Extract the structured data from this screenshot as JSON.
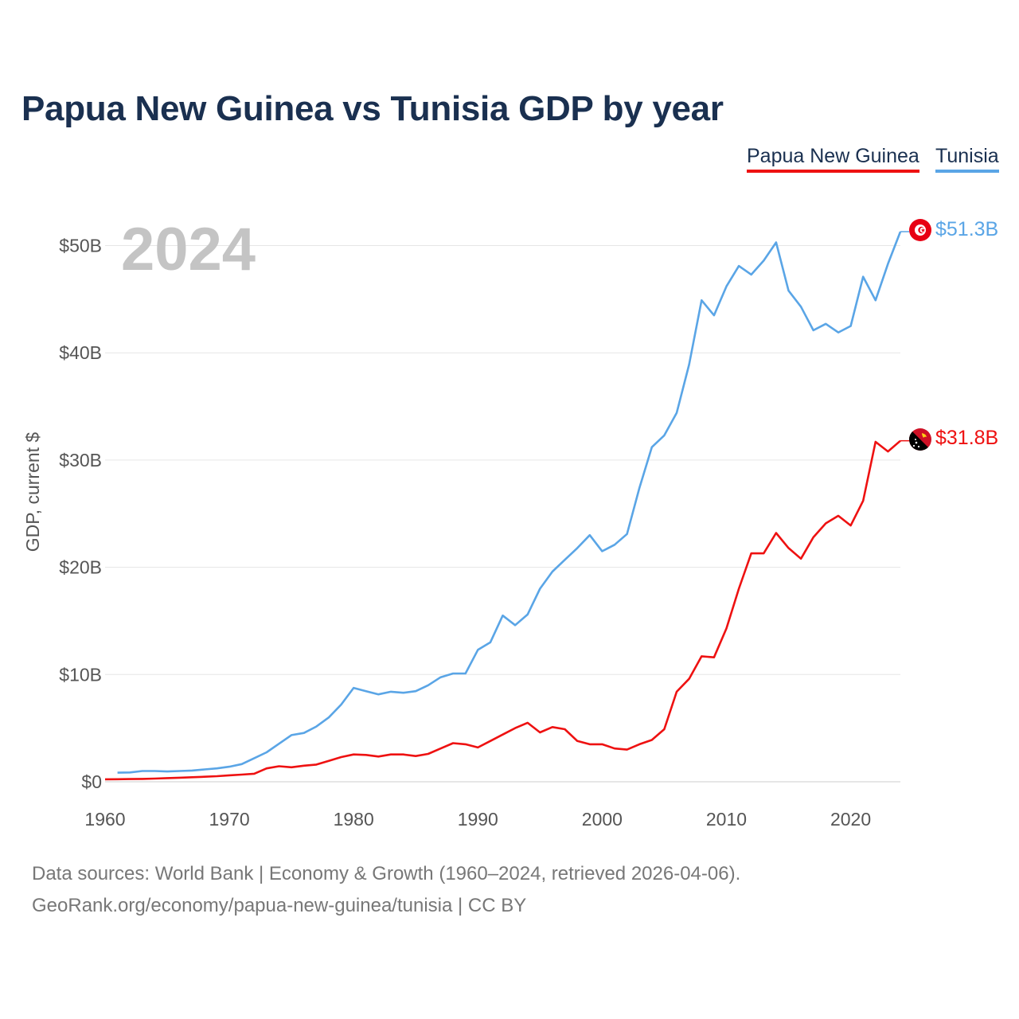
{
  "colors": {
    "png": "#ee1111",
    "tunisia": "#5aa5e6",
    "title": "#1a3050",
    "grid": "#e6e6e6",
    "axis_text": "#555555",
    "year_text": "#c4c4c4"
  },
  "legend": {
    "png": "Papua New Guinea",
    "tunisia": "Tunisia"
  },
  "year_label": "2024",
  "end_labels": {
    "png": "$31.8B",
    "tunisia": "$51.3B"
  },
  "icons": {
    "png": "papua-new-guinea-flag-icon",
    "tunisia": "tunisia-flag-icon"
  },
  "footer": {
    "line1": "Data sources: World Bank | Economy & Growth (1960–2024, retrieved 2026-04-06).",
    "line2": "GeoRank.org/economy/papua-new-guinea/tunisia | CC BY"
  },
  "chart_data": {
    "type": "line",
    "title": "Papua New Guinea vs Tunisia GDP by year",
    "xlabel": "",
    "ylabel": "GDP, current $",
    "xlim": [
      1960,
      2024
    ],
    "ylim": [
      0,
      52
    ],
    "x_ticks": [
      1960,
      1970,
      1980,
      1990,
      2000,
      2010,
      2020
    ],
    "y_ticks": [
      0,
      10,
      20,
      30,
      40,
      50
    ],
    "y_tick_labels": [
      "$0",
      "$10B",
      "$20B",
      "$30B",
      "$40B",
      "$50B"
    ],
    "grid": true,
    "units": "billions of current US dollars",
    "series": [
      {
        "name": "Papua New Guinea",
        "color": "#ee1111",
        "x": [
          1960,
          1961,
          1962,
          1963,
          1964,
          1965,
          1966,
          1967,
          1968,
          1969,
          1970,
          1971,
          1972,
          1973,
          1974,
          1975,
          1976,
          1977,
          1978,
          1979,
          1980,
          1981,
          1982,
          1983,
          1984,
          1985,
          1986,
          1987,
          1988,
          1989,
          1990,
          1991,
          1992,
          1993,
          1994,
          1995,
          1996,
          1997,
          1998,
          1999,
          2000,
          2001,
          2002,
          2003,
          2004,
          2005,
          2006,
          2007,
          2008,
          2009,
          2010,
          2011,
          2012,
          2013,
          2014,
          2015,
          2016,
          2017,
          2018,
          2019,
          2020,
          2021,
          2022,
          2023,
          2024
        ],
        "values": [
          0.23,
          0.24,
          0.25,
          0.27,
          0.3,
          0.34,
          0.38,
          0.42,
          0.47,
          0.52,
          0.6,
          0.67,
          0.75,
          1.25,
          1.45,
          1.35,
          1.5,
          1.6,
          1.95,
          2.3,
          2.55,
          2.5,
          2.35,
          2.55,
          2.55,
          2.4,
          2.6,
          3.1,
          3.6,
          3.5,
          3.2,
          3.8,
          4.4,
          5.0,
          5.5,
          4.6,
          5.1,
          4.9,
          3.8,
          3.5,
          3.5,
          3.1,
          3.0,
          3.5,
          3.9,
          4.9,
          8.4,
          9.6,
          11.7,
          11.6,
          14.3,
          18.0,
          21.3,
          21.3,
          23.2,
          21.8,
          20.8,
          22.8,
          24.1,
          24.8,
          23.9,
          26.2,
          31.7,
          30.8,
          31.8
        ]
      },
      {
        "name": "Tunisia",
        "color": "#5aa5e6",
        "x": [
          1961,
          1962,
          1963,
          1964,
          1965,
          1966,
          1967,
          1968,
          1969,
          1970,
          1971,
          1972,
          1973,
          1974,
          1975,
          1976,
          1977,
          1978,
          1979,
          1980,
          1981,
          1982,
          1983,
          1984,
          1985,
          1986,
          1987,
          1988,
          1989,
          1990,
          1991,
          1992,
          1993,
          1994,
          1995,
          1996,
          1997,
          1998,
          1999,
          2000,
          2001,
          2002,
          2003,
          2004,
          2005,
          2006,
          2007,
          2008,
          2009,
          2010,
          2011,
          2012,
          2013,
          2014,
          2015,
          2016,
          2017,
          2018,
          2019,
          2020,
          2021,
          2022,
          2023,
          2024
        ],
        "values": [
          0.85,
          0.87,
          1.0,
          1.0,
          0.96,
          1.0,
          1.05,
          1.15,
          1.25,
          1.4,
          1.65,
          2.2,
          2.75,
          3.55,
          4.35,
          4.55,
          5.15,
          6.0,
          7.2,
          8.75,
          8.45,
          8.15,
          8.4,
          8.3,
          8.45,
          9.0,
          9.75,
          10.1,
          10.1,
          12.3,
          13.0,
          15.5,
          14.6,
          15.6,
          18.0,
          19.6,
          20.7,
          21.8,
          23.0,
          21.5,
          22.1,
          23.1,
          27.4,
          31.2,
          32.3,
          34.4,
          38.9,
          44.9,
          43.5,
          46.2,
          48.1,
          47.3,
          48.6,
          50.3,
          45.8,
          44.3,
          42.1,
          42.7,
          41.9,
          42.5,
          47.1,
          44.9,
          48.3,
          51.3
        ]
      }
    ]
  }
}
